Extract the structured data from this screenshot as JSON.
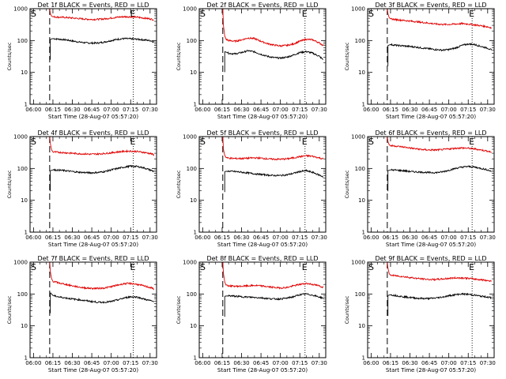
{
  "colors": {
    "events": "#000000",
    "lld": "#e00000",
    "frame": "#000000",
    "background": "#ffffff"
  },
  "chart_data": [
    {
      "type": "line",
      "scale": "log",
      "title": "Det 1f BLACK = Events, RED = LLD",
      "xlabel": "Start Time (28-Aug-07 05:57:20)",
      "ylabel": "Counts/sec",
      "xticks": [
        "06:00",
        "06:15",
        "06:30",
        "06:45",
        "07:00",
        "07:15",
        "07:30"
      ],
      "yticks": [
        "1",
        "10",
        "100",
        "1000"
      ],
      "xlim_min": [
        -2.67,
        95
      ],
      "ylim": [
        1,
        1000
      ],
      "start_marker": "S",
      "end_marker": "E",
      "start_min": 12.5,
      "end_min": 77,
      "series": [
        {
          "name": "Events",
          "color": "#000000",
          "x": [
            13,
            15,
            20,
            25,
            30,
            35,
            40,
            45,
            50,
            55,
            60,
            65,
            70,
            75,
            80,
            85,
            90,
            93
          ],
          "y": [
            110,
            115,
            110,
            105,
            97,
            90,
            85,
            83,
            84,
            90,
            100,
            110,
            115,
            113,
            110,
            105,
            100,
            90
          ]
        },
        {
          "name": "LLD",
          "color": "#e00000",
          "x": [
            12.5,
            13,
            14,
            15,
            20,
            25,
            30,
            35,
            40,
            45,
            50,
            55,
            60,
            65,
            70,
            75,
            80,
            85,
            90,
            93
          ],
          "y": [
            1000,
            700,
            580,
            560,
            540,
            530,
            510,
            490,
            470,
            460,
            465,
            480,
            510,
            540,
            560,
            555,
            540,
            510,
            480,
            450
          ]
        }
      ]
    },
    {
      "type": "line",
      "scale": "log",
      "title": "Det 2f BLACK = Events, RED = LLD",
      "xlabel": "Start Time (28-Aug-07 05:57:20)",
      "ylabel": "Counts/sec",
      "xticks": [
        "06:00",
        "06:15",
        "06:30",
        "06:45",
        "07:00",
        "07:15",
        "07:30"
      ],
      "yticks": [
        "1",
        "10",
        "100",
        "1000"
      ],
      "xlim_min": [
        -2.67,
        95
      ],
      "ylim": [
        1,
        1000
      ],
      "start_marker": "S",
      "end_marker": "E",
      "start_min": 15.5,
      "end_min": 79,
      "series": [
        {
          "name": "Events",
          "color": "#000000",
          "x": [
            17,
            20,
            25,
            30,
            35,
            40,
            45,
            50,
            55,
            60,
            65,
            70,
            75,
            80,
            85,
            90,
            93
          ],
          "y": [
            45,
            40,
            38,
            42,
            48,
            44,
            37,
            32,
            29,
            28,
            30,
            35,
            42,
            45,
            40,
            32,
            25
          ]
        },
        {
          "name": "LLD",
          "color": "#e00000",
          "x": [
            15.5,
            16,
            17,
            18,
            20,
            25,
            30,
            35,
            40,
            45,
            50,
            55,
            60,
            65,
            70,
            75,
            80,
            85,
            90,
            93
          ],
          "y": [
            1000,
            300,
            140,
            110,
            100,
            95,
            105,
            120,
            115,
            95,
            80,
            72,
            68,
            70,
            78,
            95,
            110,
            105,
            85,
            70
          ]
        }
      ]
    },
    {
      "type": "line",
      "scale": "log",
      "title": "Det 3f BLACK = Events, RED = LLD",
      "xlabel": "Start Time (28-Aug-07 05:57:20)",
      "ylabel": "Counts/sec",
      "xticks": [
        "06:00",
        "06:15",
        "06:30",
        "06:45",
        "07:00",
        "07:15",
        "07:30"
      ],
      "yticks": [
        "1",
        "10",
        "100",
        "1000"
      ],
      "xlim_min": [
        -2.67,
        95
      ],
      "ylim": [
        1,
        1000
      ],
      "start_marker": "S",
      "end_marker": "E",
      "start_min": 12.5,
      "end_min": 78,
      "series": [
        {
          "name": "Events",
          "color": "#000000",
          "x": [
            13,
            15,
            20,
            25,
            30,
            35,
            40,
            45,
            50,
            55,
            60,
            65,
            70,
            75,
            80,
            85,
            90,
            93
          ],
          "y": [
            70,
            75,
            70,
            68,
            65,
            62,
            58,
            55,
            52,
            50,
            52,
            58,
            70,
            78,
            75,
            65,
            58,
            50
          ]
        },
        {
          "name": "LLD",
          "color": "#e00000",
          "x": [
            12.5,
            13,
            14,
            15,
            20,
            25,
            30,
            35,
            40,
            45,
            50,
            55,
            60,
            65,
            70,
            75,
            80,
            85,
            90,
            93
          ],
          "y": [
            1000,
            700,
            520,
            480,
            450,
            430,
            410,
            390,
            370,
            350,
            330,
            320,
            320,
            330,
            340,
            330,
            310,
            290,
            270,
            250
          ]
        }
      ]
    },
    {
      "type": "line",
      "scale": "log",
      "title": "Det 4f BLACK = Events, RED = LLD",
      "xlabel": "Start Time (28-Aug-07 05:57:20)",
      "ylabel": "Counts/sec",
      "xticks": [
        "06:00",
        "06:15",
        "06:30",
        "06:45",
        "07:00",
        "07:15",
        "07:30"
      ],
      "yticks": [
        "1",
        "10",
        "100",
        "1000"
      ],
      "xlim_min": [
        -2.67,
        95
      ],
      "ylim": [
        1,
        1000
      ],
      "start_marker": "S",
      "end_marker": "E",
      "start_min": 12.5,
      "end_min": 77,
      "series": [
        {
          "name": "Events",
          "color": "#000000",
          "x": [
            13,
            15,
            20,
            25,
            30,
            35,
            40,
            45,
            50,
            55,
            60,
            65,
            70,
            75,
            80,
            85,
            90,
            93
          ],
          "y": [
            85,
            90,
            88,
            85,
            80,
            76,
            74,
            73,
            75,
            80,
            90,
            100,
            110,
            118,
            115,
            105,
            90,
            80
          ]
        },
        {
          "name": "LLD",
          "color": "#e00000",
          "x": [
            12.5,
            13,
            14,
            15,
            20,
            25,
            30,
            35,
            40,
            45,
            50,
            55,
            60,
            65,
            70,
            75,
            80,
            85,
            90,
            93
          ],
          "y": [
            1000,
            600,
            380,
            330,
            320,
            310,
            300,
            290,
            285,
            280,
            285,
            295,
            310,
            330,
            345,
            350,
            340,
            320,
            295,
            270
          ]
        }
      ]
    },
    {
      "type": "line",
      "scale": "log",
      "title": "Det 5f BLACK = Events, RED = LLD",
      "xlabel": "Start Time (28-Aug-07 05:57:20)",
      "ylabel": "Counts/sec",
      "xticks": [
        "06:00",
        "06:15",
        "06:30",
        "06:45",
        "07:00",
        "07:15",
        "07:30"
      ],
      "yticks": [
        "1",
        "10",
        "100",
        "1000"
      ],
      "xlim_min": [
        -2.67,
        95
      ],
      "ylim": [
        1,
        1000
      ],
      "start_marker": "S",
      "end_marker": "E",
      "start_min": 15.5,
      "end_min": 79,
      "series": [
        {
          "name": "Events",
          "color": "#000000",
          "x": [
            17,
            20,
            25,
            30,
            35,
            40,
            45,
            50,
            55,
            60,
            65,
            70,
            75,
            80,
            85,
            90,
            93
          ],
          "y": [
            80,
            82,
            80,
            76,
            72,
            68,
            65,
            62,
            60,
            60,
            63,
            70,
            80,
            85,
            75,
            62,
            55
          ]
        },
        {
          "name": "LLD",
          "color": "#e00000",
          "x": [
            15.5,
            16,
            17,
            18,
            20,
            25,
            30,
            35,
            40,
            45,
            50,
            55,
            60,
            65,
            70,
            75,
            80,
            85,
            90,
            93
          ],
          "y": [
            1000,
            400,
            260,
            220,
            210,
            205,
            205,
            210,
            215,
            210,
            200,
            195,
            195,
            200,
            215,
            235,
            250,
            240,
            215,
            200
          ]
        }
      ]
    },
    {
      "type": "line",
      "scale": "log",
      "title": "Det 6f BLACK = Events, RED = LLD",
      "xlabel": "Start Time (28-Aug-07 05:57:20)",
      "ylabel": "Counts/sec",
      "xticks": [
        "06:00",
        "06:15",
        "06:30",
        "06:45",
        "07:00",
        "07:15",
        "07:30"
      ],
      "yticks": [
        "1",
        "10",
        "100",
        "1000"
      ],
      "xlim_min": [
        -2.67,
        95
      ],
      "ylim": [
        1,
        1000
      ],
      "start_marker": "S",
      "end_marker": "E",
      "start_min": 12.5,
      "end_min": 78,
      "series": [
        {
          "name": "Events",
          "color": "#000000",
          "x": [
            13,
            15,
            20,
            25,
            30,
            35,
            40,
            45,
            50,
            55,
            60,
            65,
            70,
            75,
            80,
            85,
            90,
            93
          ],
          "y": [
            85,
            90,
            88,
            85,
            80,
            78,
            76,
            74,
            74,
            78,
            88,
            100,
            110,
            115,
            110,
            100,
            90,
            80
          ]
        },
        {
          "name": "LLD",
          "color": "#e00000",
          "x": [
            12.5,
            13,
            14,
            15,
            20,
            25,
            30,
            35,
            40,
            45,
            50,
            55,
            60,
            65,
            70,
            75,
            80,
            85,
            90,
            93
          ],
          "y": [
            1000,
            700,
            550,
            520,
            500,
            470,
            440,
            410,
            390,
            380,
            380,
            390,
            410,
            430,
            440,
            430,
            410,
            380,
            350,
            320
          ]
        }
      ]
    },
    {
      "type": "line",
      "scale": "log",
      "title": "Det 7f BLACK = Events, RED = LLD",
      "xlabel": "Start Time (28-Aug-07 05:57:20)",
      "ylabel": "Counts/sec",
      "xticks": [
        "06:00",
        "06:15",
        "06:30",
        "06:45",
        "07:00",
        "07:15",
        "07:30"
      ],
      "yticks": [
        "1",
        "10",
        "100",
        "1000"
      ],
      "xlim_min": [
        -2.67,
        95
      ],
      "ylim": [
        1,
        1000
      ],
      "start_marker": "S",
      "end_marker": "E",
      "start_min": 12.5,
      "end_min": 77,
      "series": [
        {
          "name": "Events",
          "color": "#000000",
          "x": [
            13,
            15,
            20,
            25,
            30,
            35,
            40,
            45,
            50,
            55,
            60,
            65,
            70,
            75,
            80,
            85,
            90,
            93
          ],
          "y": [
            110,
            90,
            80,
            75,
            70,
            66,
            62,
            58,
            55,
            55,
            58,
            65,
            75,
            82,
            80,
            70,
            62,
            58
          ]
        },
        {
          "name": "LLD",
          "color": "#e00000",
          "x": [
            12.5,
            13,
            14,
            15,
            20,
            25,
            30,
            35,
            40,
            45,
            50,
            55,
            60,
            65,
            70,
            75,
            80,
            85,
            90,
            93
          ],
          "y": [
            1000,
            500,
            300,
            250,
            220,
            200,
            180,
            165,
            155,
            150,
            150,
            155,
            170,
            190,
            210,
            215,
            200,
            180,
            160,
            145
          ]
        }
      ]
    },
    {
      "type": "line",
      "scale": "log",
      "title": "Det 8f BLACK = Events, RED = LLD",
      "xlabel": "Start Time (28-Aug-07 05:57:20)",
      "ylabel": "Counts/sec",
      "xticks": [
        "06:00",
        "06:15",
        "06:30",
        "06:45",
        "07:00",
        "07:15",
        "07:30"
      ],
      "yticks": [
        "1",
        "10",
        "100",
        "1000"
      ],
      "xlim_min": [
        -2.67,
        95
      ],
      "ylim": [
        1,
        1000
      ],
      "start_marker": "S",
      "end_marker": "E",
      "start_min": 15.5,
      "end_min": 79,
      "series": [
        {
          "name": "Events",
          "color": "#000000",
          "x": [
            17,
            20,
            25,
            30,
            35,
            40,
            45,
            50,
            55,
            60,
            65,
            70,
            75,
            80,
            85,
            90,
            93
          ],
          "y": [
            85,
            88,
            85,
            82,
            80,
            78,
            76,
            72,
            70,
            70,
            74,
            82,
            95,
            100,
            92,
            80,
            75
          ]
        },
        {
          "name": "LLD",
          "color": "#e00000",
          "x": [
            15.5,
            16,
            17,
            18,
            20,
            25,
            30,
            35,
            40,
            45,
            50,
            55,
            60,
            65,
            70,
            75,
            80,
            85,
            90,
            93
          ],
          "y": [
            1000,
            450,
            240,
            190,
            180,
            175,
            175,
            180,
            185,
            180,
            170,
            160,
            155,
            160,
            180,
            200,
            215,
            200,
            180,
            160
          ]
        }
      ]
    },
    {
      "type": "line",
      "scale": "log",
      "title": "Det 9f BLACK = Events, RED = LLD",
      "xlabel": "Start Time (28-Aug-07 05:57:20)",
      "ylabel": "Counts/sec",
      "xticks": [
        "06:00",
        "06:15",
        "06:30",
        "06:45",
        "07:00",
        "07:15",
        "07:30"
      ],
      "yticks": [
        "1",
        "10",
        "100",
        "1000"
      ],
      "xlim_min": [
        -2.67,
        95
      ],
      "ylim": [
        1,
        1000
      ],
      "start_marker": "S",
      "end_marker": "E",
      "start_min": 12.5,
      "end_min": 78,
      "series": [
        {
          "name": "Events",
          "color": "#000000",
          "x": [
            13,
            15,
            20,
            25,
            30,
            35,
            40,
            45,
            50,
            55,
            60,
            65,
            70,
            75,
            80,
            85,
            90,
            93
          ],
          "y": [
            90,
            95,
            88,
            82,
            78,
            74,
            72,
            72,
            75,
            80,
            88,
            95,
            100,
            98,
            92,
            85,
            80,
            75
          ]
        },
        {
          "name": "LLD",
          "color": "#e00000",
          "x": [
            12.5,
            13,
            14,
            15,
            20,
            25,
            30,
            35,
            40,
            45,
            50,
            55,
            60,
            65,
            70,
            75,
            80,
            85,
            90,
            93
          ],
          "y": [
            1000,
            650,
            430,
            390,
            370,
            350,
            330,
            310,
            295,
            285,
            285,
            295,
            310,
            320,
            320,
            310,
            295,
            280,
            265,
            250
          ]
        }
      ]
    }
  ]
}
